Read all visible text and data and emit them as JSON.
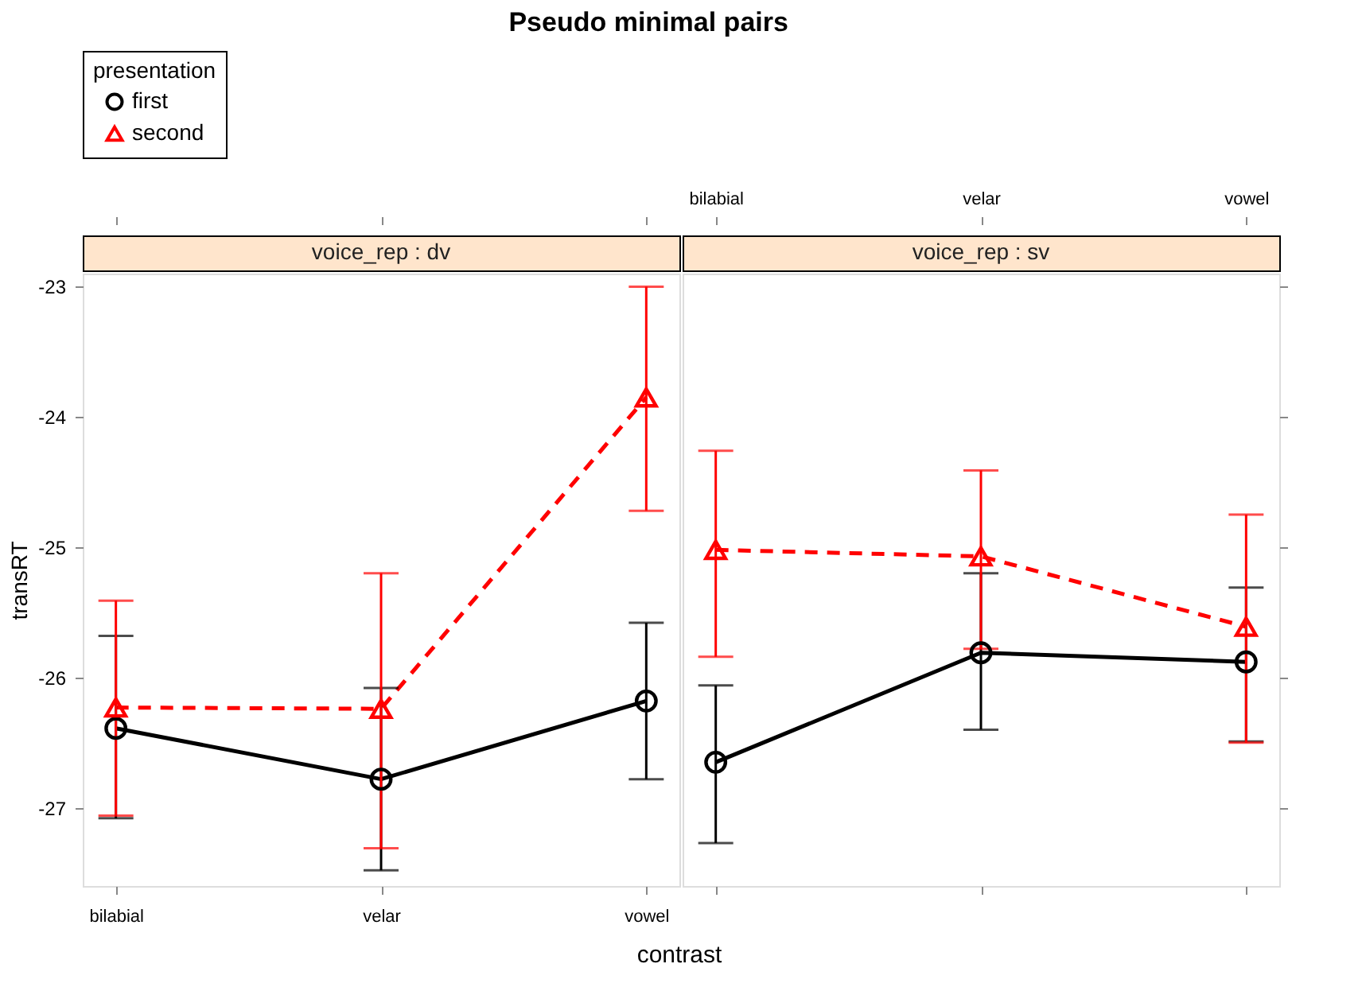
{
  "chart_data": [
    {
      "type": "line",
      "title": "Pseudo minimal pairs",
      "subtitle": "voice_rep : dv",
      "xlabel": "contrast",
      "ylabel": "transRT",
      "legend_title": "presentation",
      "legend": "top",
      "categories": [
        "bilabial",
        "velar",
        "vowel"
      ],
      "ylim": [
        -27.6,
        -22.9
      ],
      "yticks": [
        -27,
        -26,
        -25,
        -24,
        -23
      ],
      "tick_labels": "xy",
      "series": [
        {
          "name": "first",
          "color": "#000000",
          "marker": "circle",
          "line_style": "solid",
          "values": [
            -26.39,
            -26.78,
            -26.18
          ],
          "errors": [
            [
              -27.08,
              -25.68
            ],
            [
              -27.48,
              -26.08
            ],
            [
              -26.78,
              -25.58
            ]
          ]
        },
        {
          "name": "second",
          "color": "#ff0000",
          "marker": "triangle",
          "line_style": "dashed",
          "values": [
            -26.23,
            -26.24,
            -23.85
          ],
          "errors": [
            [
              -27.06,
              -25.41
            ],
            [
              -27.31,
              -25.2
            ],
            [
              -24.72,
              -23.0
            ]
          ]
        }
      ]
    },
    {
      "type": "line",
      "subtitle": "voice_rep : sv",
      "categories": [
        "bilabial",
        "velar",
        "vowel"
      ],
      "ylim": [
        -27.6,
        -22.9
      ],
      "yticks": [
        -27,
        -26,
        -25,
        -24,
        -23
      ],
      "tick_labels": "x",
      "series": [
        {
          "name": "first",
          "color": "#000000",
          "marker": "circle",
          "line_style": "solid",
          "values": [
            -26.65,
            -25.81,
            -25.88
          ],
          "errors": [
            [
              -27.27,
              -26.06
            ],
            [
              -26.4,
              -25.2
            ],
            [
              -26.49,
              -25.31
            ]
          ]
        },
        {
          "name": "second",
          "color": "#ff0000",
          "marker": "triangle",
          "line_style": "dashed",
          "values": [
            -25.02,
            -25.07,
            -25.61
          ],
          "errors": [
            [
              -25.84,
              -24.26
            ],
            [
              -25.78,
              -24.41
            ],
            [
              -26.5,
              -24.75
            ]
          ]
        }
      ]
    }
  ]
}
